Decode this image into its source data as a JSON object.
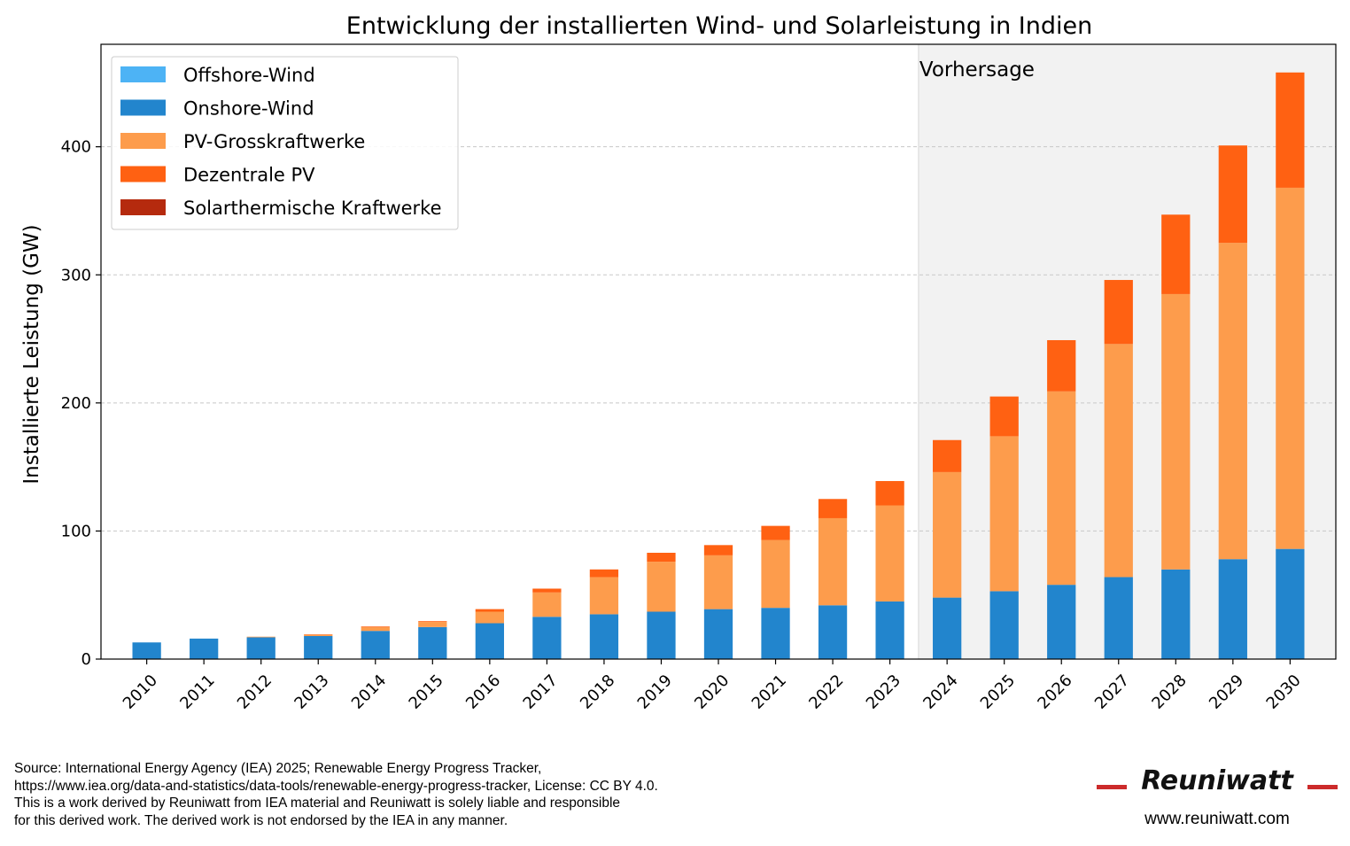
{
  "chart_data": {
    "type": "bar",
    "stacked": true,
    "title": "Entwicklung der installierten Wind- und Solarleistung in Indien",
    "xlabel": "",
    "ylabel": "Installierte Leistung (GW)",
    "ylim": [
      0,
      480
    ],
    "yticks": [
      0,
      100,
      200,
      300,
      400
    ],
    "grid": "y-dashed",
    "legend_position": "top-left",
    "categories": [
      "2010",
      "2011",
      "2012",
      "2013",
      "2014",
      "2015",
      "2016",
      "2017",
      "2018",
      "2019",
      "2020",
      "2021",
      "2022",
      "2023",
      "2024",
      "2025",
      "2026",
      "2027",
      "2028",
      "2029",
      "2030"
    ],
    "forecast": {
      "label": "Vorhersage",
      "from": "2024",
      "to": "2030"
    },
    "series": [
      {
        "name": "Offshore-Wind",
        "color": "#4db3f5",
        "values": [
          0,
          0,
          0,
          0,
          0,
          0,
          0,
          0,
          0,
          0,
          0,
          0,
          0,
          0,
          0,
          0,
          0,
          0,
          0,
          0,
          0
        ]
      },
      {
        "name": "Onshore-Wind",
        "color": "#2285cd",
        "values": [
          13,
          16,
          17,
          18,
          22,
          25,
          28,
          33,
          35,
          37,
          39,
          40,
          42,
          45,
          48,
          53,
          58,
          64,
          70,
          78,
          86
        ]
      },
      {
        "name": "PV-Grosskraftwerke",
        "color": "#fd9c4c",
        "values": [
          0,
          0,
          0.5,
          1,
          3,
          4,
          9,
          19,
          29,
          39,
          42,
          53,
          68,
          75,
          98,
          121,
          151,
          182,
          215,
          247,
          282
        ]
      },
      {
        "name": "Dezentrale PV",
        "color": "#ff6112",
        "values": [
          0,
          0,
          0,
          0.3,
          0.5,
          0.6,
          2,
          3,
          6,
          7,
          8,
          11,
          15,
          19,
          25,
          31,
          40,
          50,
          62,
          76,
          90
        ]
      },
      {
        "name": "Solarthermische Kraftwerke",
        "color": "#b52a0e",
        "values": [
          0,
          0,
          0,
          0,
          0,
          0,
          0,
          0,
          0,
          0,
          0,
          0,
          0,
          0,
          0,
          0,
          0,
          0,
          0,
          0,
          0
        ]
      }
    ]
  },
  "footer": {
    "source_lines": [
      "Source: International Energy Agency (IEA) 2025; Renewable Energy Progress Tracker,",
      "https://www.iea.org/data-and-statistics/data-tools/renewable-energy-progress-tracker, License: CC BY 4.0.",
      "This is a work derived by Reuniwatt from IEA material and Reuniwatt is solely liable and responsible",
      "for this derived work. The derived work is not endorsed by the IEA in any manner."
    ],
    "brand": "Reuniwatt",
    "brand_url": "www.reuniwatt.com",
    "brand_line_color": "#cc2b2b"
  }
}
